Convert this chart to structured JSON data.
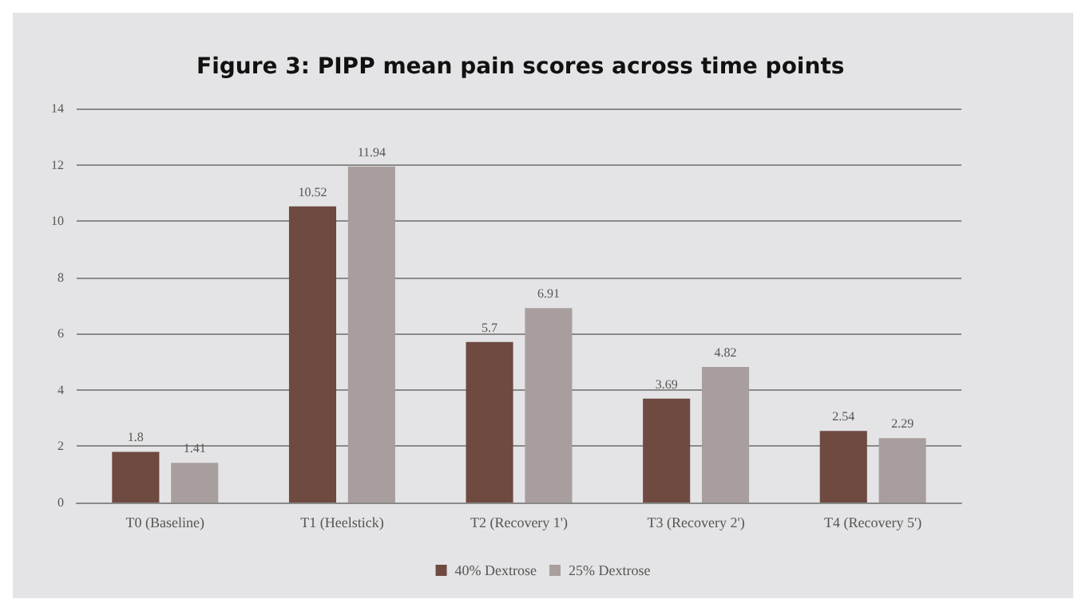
{
  "chart_data": {
    "type": "bar",
    "title": "Figure 3: PIPP mean pain scores across time points",
    "categories": [
      "T0 (Baseline)",
      "T1 (Heelstick)",
      "T2 (Recovery 1')",
      "T3 (Recovery 2')",
      "T4 (Recovery 5')"
    ],
    "series": [
      {
        "name": "40% Dextrose",
        "color": "#6e4a40",
        "values": [
          1.8,
          10.52,
          5.7,
          3.69,
          2.54
        ]
      },
      {
        "name": "25% Dextrose",
        "color": "#a89e9e",
        "values": [
          1.41,
          11.94,
          6.91,
          4.82,
          2.29
        ]
      }
    ],
    "ylim": [
      0,
      14
    ],
    "yticks": [
      0,
      2,
      4,
      6,
      8,
      10,
      12,
      14
    ],
    "grid": "y",
    "legend": "bottom",
    "data_labels": true
  }
}
